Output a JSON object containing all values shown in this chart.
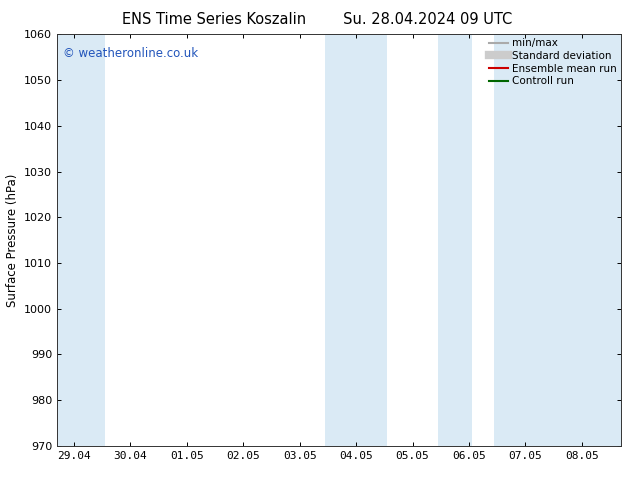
{
  "title_left": "ENS Time Series Koszalin",
  "title_right": "Su. 28.04.2024 09 UTC",
  "ylabel": "Surface Pressure (hPa)",
  "ylim": [
    970,
    1060
  ],
  "yticks": [
    970,
    980,
    990,
    1000,
    1010,
    1020,
    1030,
    1040,
    1050,
    1060
  ],
  "x_tick_labels": [
    "29.04",
    "30.04",
    "01.05",
    "02.05",
    "03.05",
    "04.05",
    "05.05",
    "06.05",
    "07.05",
    "08.05"
  ],
  "x_tick_positions": [
    0,
    1,
    2,
    3,
    4,
    5,
    6,
    7,
    8,
    9
  ],
  "xlim": [
    -0.3,
    9.7
  ],
  "shade_bands": [
    {
      "x_start": -0.3,
      "x_end": 0.55,
      "color": "#daeaf5"
    },
    {
      "x_start": 4.45,
      "x_end": 5.55,
      "color": "#daeaf5"
    },
    {
      "x_start": 6.45,
      "x_end": 7.05,
      "color": "#daeaf5"
    },
    {
      "x_start": 7.45,
      "x_end": 9.7,
      "color": "#daeaf5"
    }
  ],
  "watermark": "© weatheronline.co.uk",
  "watermark_color": "#2255bb",
  "background_color": "#ffffff",
  "plot_bg_color": "#ffffff",
  "legend_items": [
    {
      "label": "min/max",
      "color": "#aaaaaa",
      "lw": 1.5,
      "style": "solid"
    },
    {
      "label": "Standard deviation",
      "color": "#cccccc",
      "lw": 6,
      "style": "solid"
    },
    {
      "label": "Ensemble mean run",
      "color": "#cc0000",
      "lw": 1.5,
      "style": "solid"
    },
    {
      "label": "Controll run",
      "color": "#006600",
      "lw": 1.5,
      "style": "solid"
    }
  ],
  "title_fontsize": 10.5,
  "tick_fontsize": 8,
  "ylabel_fontsize": 8.5,
  "watermark_fontsize": 8.5,
  "legend_fontsize": 7.5
}
